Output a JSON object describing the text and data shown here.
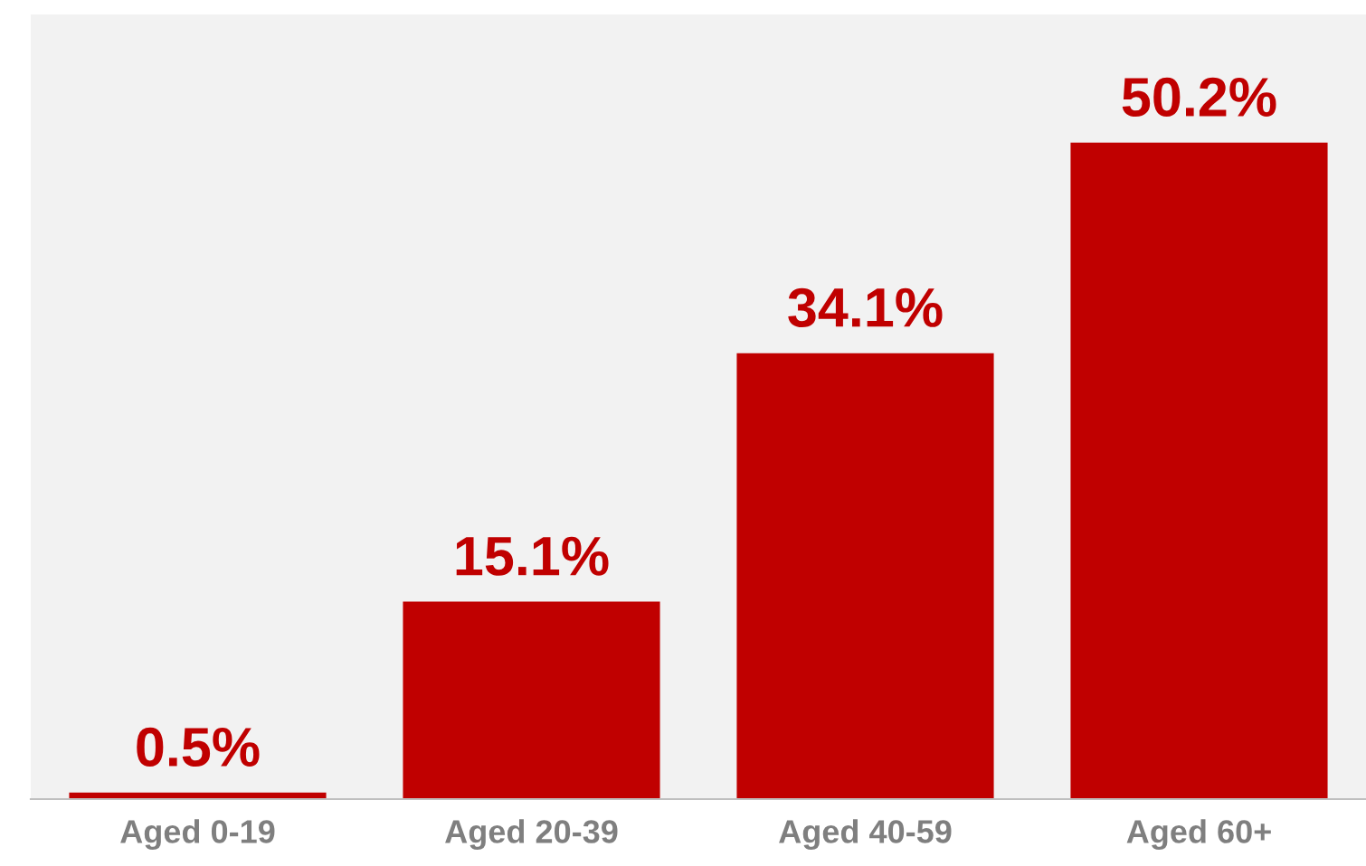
{
  "chart_data": {
    "type": "bar",
    "categories": [
      "Aged 0-19",
      "Aged 20-39",
      "Aged 40-59",
      "Aged 60+"
    ],
    "values": [
      0.5,
      15.1,
      34.1,
      50.2
    ],
    "value_labels": [
      "0.5%",
      "15.1%",
      "34.1%",
      "50.2%"
    ],
    "color": "#c00000",
    "ylim": [
      0,
      60
    ],
    "grid": false,
    "legend": false
  }
}
